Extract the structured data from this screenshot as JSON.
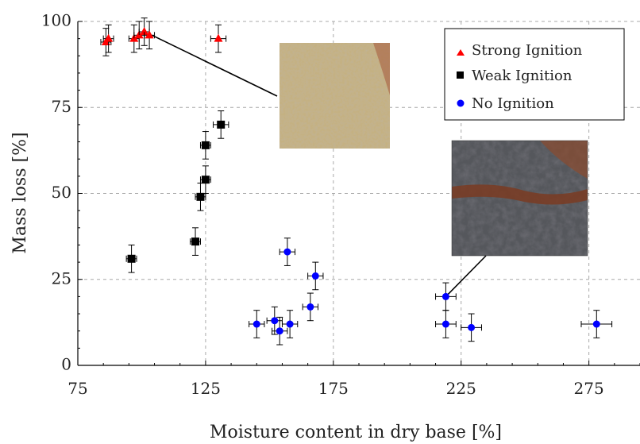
{
  "chart_data": {
    "type": "scatter",
    "title": "",
    "xlabel": "Moisture content in dry base [%]",
    "ylabel": "Mass loss [%]",
    "xlim": [
      75,
      295
    ],
    "ylim": [
      0,
      100
    ],
    "xticks": [
      75,
      125,
      175,
      225,
      275
    ],
    "yticks": [
      0,
      25,
      50,
      75,
      100
    ],
    "xtick_labels": [
      "75",
      "125",
      "175",
      "225",
      "275"
    ],
    "ytick_labels": [
      "0",
      "25",
      "50",
      "75",
      "100"
    ],
    "grid": "dashed",
    "legend_position": "top-right",
    "series": [
      {
        "name": "Strong Ignition",
        "marker": "triangle",
        "color": "#ff0000",
        "points": [
          {
            "x": 86,
            "y": 94,
            "xerr": 2,
            "yerr": 4
          },
          {
            "x": 87,
            "y": 95,
            "xerr": 2,
            "yerr": 4
          },
          {
            "x": 97,
            "y": 95,
            "xerr": 2,
            "yerr": 4
          },
          {
            "x": 99,
            "y": 96,
            "xerr": 2,
            "yerr": 4
          },
          {
            "x": 101,
            "y": 97,
            "xerr": 2,
            "yerr": 4
          },
          {
            "x": 103,
            "y": 96,
            "xerr": 2,
            "yerr": 4
          },
          {
            "x": 130,
            "y": 95,
            "xerr": 3,
            "yerr": 4
          }
        ]
      },
      {
        "name": "Weak Ignition",
        "marker": "square",
        "color": "#000000",
        "points": [
          {
            "x": 96,
            "y": 31,
            "xerr": 2,
            "yerr": 4
          },
          {
            "x": 121,
            "y": 36,
            "xerr": 2,
            "yerr": 4
          },
          {
            "x": 123,
            "y": 49,
            "xerr": 2,
            "yerr": 4
          },
          {
            "x": 125,
            "y": 54,
            "xerr": 2,
            "yerr": 4
          },
          {
            "x": 125,
            "y": 64,
            "xerr": 2,
            "yerr": 4
          },
          {
            "x": 131,
            "y": 70,
            "xerr": 3,
            "yerr": 4
          }
        ]
      },
      {
        "name": "No Ignition",
        "marker": "circle",
        "color": "#0000ff",
        "points": [
          {
            "x": 145,
            "y": 12,
            "xerr": 3,
            "yerr": 4
          },
          {
            "x": 152,
            "y": 13,
            "xerr": 3,
            "yerr": 4
          },
          {
            "x": 154,
            "y": 10,
            "xerr": 3,
            "yerr": 4
          },
          {
            "x": 157,
            "y": 33,
            "xerr": 3,
            "yerr": 4
          },
          {
            "x": 158,
            "y": 12,
            "xerr": 3,
            "yerr": 4
          },
          {
            "x": 166,
            "y": 17,
            "xerr": 3,
            "yerr": 4
          },
          {
            "x": 168,
            "y": 26,
            "xerr": 3,
            "yerr": 4
          },
          {
            "x": 219,
            "y": 20,
            "xerr": 4,
            "yerr": 4
          },
          {
            "x": 219,
            "y": 12,
            "xerr": 4,
            "yerr": 4
          },
          {
            "x": 229,
            "y": 11,
            "xerr": 4,
            "yerr": 4
          },
          {
            "x": 278,
            "y": 12,
            "xerr": 6,
            "yerr": 4
          }
        ]
      }
    ],
    "annotations": [
      {
        "type": "photo-inset",
        "subject": "dry pale ash sample",
        "points_to": {
          "x": 104,
          "y": 96
        }
      },
      {
        "type": "photo-inset",
        "subject": "dark moist sample",
        "points_to": {
          "x": 219,
          "y": 20
        }
      }
    ]
  },
  "colors": {
    "strong": "#ff0000",
    "weak": "#000000",
    "none": "#0000ff",
    "grid": "#a8a8a8",
    "axis": "#000000"
  },
  "icons": {
    "strong": "triangle-marker-icon",
    "weak": "square-marker-icon",
    "none": "circle-marker-icon"
  }
}
